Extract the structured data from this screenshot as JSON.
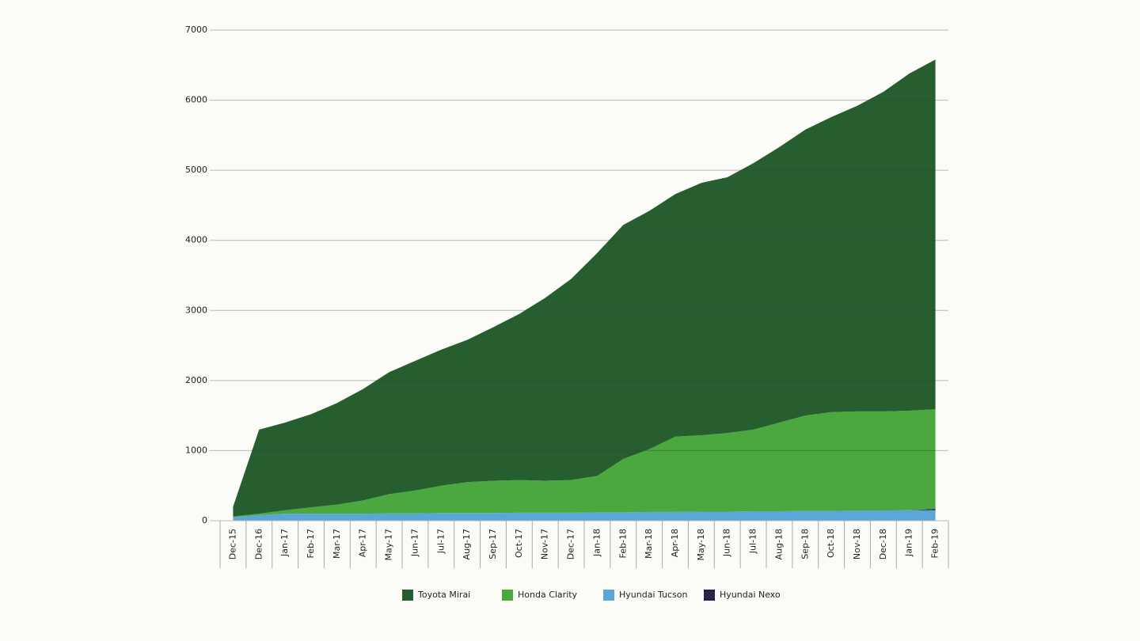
{
  "chart_data": {
    "type": "stacked-area",
    "categories": [
      "Dec-15",
      "Dec-16",
      "Jan-17",
      "Feb-17",
      "Mar-17",
      "Apr-17",
      "May-17",
      "Jun-17",
      "Jul-17",
      "Aug-17",
      "Sep-17",
      "Oct-17",
      "Nov-17",
      "Dec-17",
      "Jan-18",
      "Feb-18",
      "Mar-18",
      "Apr-18",
      "May-18",
      "Jun-18",
      "Jul-18",
      "Aug-18",
      "Sep-18",
      "Oct-18",
      "Nov-18",
      "Dec-18",
      "Jan-19",
      "Feb-19"
    ],
    "series": [
      {
        "name": "Toyota Mirai",
        "color": "#275e30",
        "values": [
          140,
          1200,
          1250,
          1330,
          1450,
          1590,
          1740,
          1850,
          1940,
          2030,
          2190,
          2370,
          2610,
          2870,
          3180,
          3340,
          3400,
          3460,
          3600,
          3650,
          3800,
          3930,
          4080,
          4210,
          4360,
          4560,
          4810,
          4990
        ]
      },
      {
        "name": "Honda Clarity",
        "color": "#4aa83f",
        "values": [
          10,
          20,
          50,
          90,
          130,
          190,
          275,
          325,
          390,
          440,
          460,
          465,
          455,
          465,
          520,
          760,
          895,
          1075,
          1090,
          1120,
          1165,
          1265,
          1360,
          1410,
          1415,
          1415,
          1420,
          1420
        ]
      },
      {
        "name": "Hyundai Tucson",
        "color": "#5aa6d6",
        "values": [
          50,
          80,
          100,
          100,
          100,
          100,
          105,
          105,
          110,
          110,
          110,
          115,
          115,
          115,
          120,
          120,
          125,
          125,
          130,
          130,
          135,
          135,
          140,
          140,
          145,
          145,
          150,
          150
        ]
      },
      {
        "name": "Hyundai Nexo",
        "color": "#2a2145",
        "values": [
          0,
          0,
          0,
          0,
          0,
          0,
          0,
          0,
          0,
          0,
          0,
          0,
          0,
          0,
          0,
          0,
          0,
          0,
          0,
          0,
          0,
          0,
          0,
          0,
          0,
          0,
          0,
          20
        ]
      }
    ],
    "ylim": [
      0,
      7000
    ],
    "yticks": [
      0,
      1000,
      2000,
      3000,
      4000,
      5000,
      6000,
      7000
    ],
    "grid": true
  }
}
